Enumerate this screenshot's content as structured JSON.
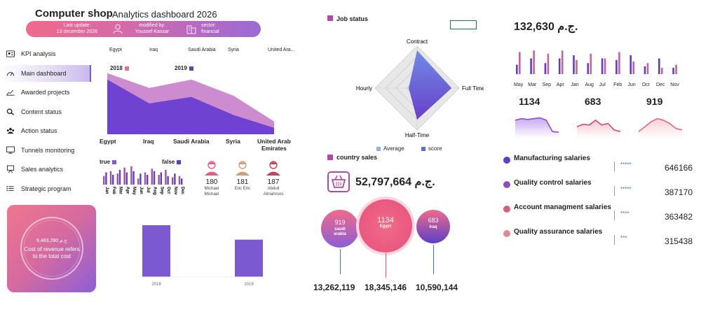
{
  "header": {
    "title": "Computer shop",
    "subtitle": "Analytics dashboard 2026",
    "last_update_label": "Last update:",
    "last_update_value": "13 december 2026",
    "modified_label": "modified by:",
    "modified_value": "Youssef Kassar",
    "sector_label": "sector:",
    "sector_value": "financial",
    "colors": {
      "pink": "#f06a8a",
      "purple": "#9b6ad6"
    }
  },
  "sidebar": {
    "items": [
      {
        "label": "KPI analysis",
        "icon": "id-card-icon"
      },
      {
        "label": "Main dashboard",
        "icon": "gauge-icon"
      },
      {
        "label": "Awarded projects",
        "icon": "line-chart-icon"
      },
      {
        "label": "Content status",
        "icon": "magnifier-icon"
      },
      {
        "label": "Action status",
        "icon": "people-icon"
      },
      {
        "label": "Tunnels monitoring",
        "icon": "monitor-icon"
      },
      {
        "label": "Sales analytics",
        "icon": "presentation-icon"
      },
      {
        "label": "Strategic program",
        "icon": "list-icon"
      }
    ],
    "active_index": 1
  },
  "area_chart": {
    "top_labels": [
      "Egypt",
      "Iraq",
      "Saudi Arabia",
      "Syria",
      "United Ara..."
    ],
    "legend": [
      {
        "label": "2018",
        "color": "#f06a8a"
      },
      {
        "label": "2019",
        "color": "#5b3fc8"
      }
    ],
    "bottom_labels": [
      "Egypt",
      "Iraq",
      "Saudi Arabia",
      "Syria",
      "United Arab\nEmirates"
    ]
  },
  "chart_data": [
    {
      "type": "area",
      "categories": [
        "Egypt",
        "Iraq",
        "Saudi Arabia",
        "Syria",
        "United Arab Emirates"
      ],
      "series": [
        {
          "name": "2018",
          "values": [
            95,
            72,
            85,
            60,
            20
          ]
        },
        {
          "name": "2019",
          "values": [
            85,
            48,
            58,
            30,
            10
          ]
        }
      ],
      "ylim": [
        0,
        100
      ]
    },
    {
      "type": "bar",
      "categories": [
        "Jan",
        "Feb",
        "Mar",
        "Apr",
        "May",
        "Jun",
        "Jul",
        "Aug",
        "Sep",
        "Oct",
        "Nov",
        "Dec"
      ],
      "series": [
        {
          "name": "true",
          "values": [
            14,
            22,
            18,
            28,
            30,
            10,
            20,
            26,
            16,
            24,
            12,
            14
          ]
        },
        {
          "name": "false",
          "values": [
            20,
            16,
            24,
            20,
            22,
            18,
            16,
            22,
            20,
            14,
            18,
            10
          ]
        }
      ],
      "ylim": [
        0,
        32
      ]
    },
    {
      "type": "bar",
      "categories": [
        "2018",
        "2019"
      ],
      "values": [
        86,
        62
      ],
      "ylim": [
        0,
        100
      ]
    },
    {
      "type": "radar",
      "categories": [
        "Contract",
        "Full Time",
        "Half-Time",
        "Hourly"
      ],
      "series": [
        {
          "name": "Average",
          "values": [
            100,
            100,
            100,
            100
          ]
        },
        {
          "name": "score",
          "values": [
            90,
            82,
            75,
            20
          ]
        }
      ],
      "ylim": [
        0,
        100
      ]
    },
    {
      "type": "bar",
      "categories": [
        "May",
        "Mar",
        "Sep",
        "Apr",
        "Jan",
        "Aug",
        "Jul",
        "Feb",
        "Jun",
        "Oct",
        "Dec",
        "Nov"
      ],
      "series": [
        {
          "name": "s1",
          "values": [
            12,
            20,
            14,
            20,
            24,
            14,
            20,
            18,
            24,
            10,
            20,
            8
          ]
        },
        {
          "name": "s2",
          "values": [
            28,
            30,
            26,
            30,
            18,
            26,
            20,
            28,
            16,
            14,
            8,
            12
          ]
        }
      ],
      "ylim": [
        0,
        32
      ]
    },
    {
      "type": "area",
      "categories": [
        "1",
        "2",
        "3",
        "4",
        "5",
        "6",
        "7",
        "8"
      ],
      "series": [
        {
          "name": "1134",
          "values": [
            20,
            22,
            21,
            22,
            23,
            20,
            6,
            5
          ]
        },
        {
          "name": "683",
          "values": [
            12,
            15,
            14,
            20,
            14,
            16,
            8,
            6
          ]
        },
        {
          "name": "919",
          "values": [
            6,
            12,
            18,
            22,
            20,
            16,
            10,
            8
          ]
        }
      ],
      "ylim": [
        0,
        26
      ]
    }
  ],
  "tf_chart": {
    "legend": [
      {
        "label": "true",
        "color": "#7b5bd6"
      },
      {
        "label": "false",
        "color": "#5b3fc8"
      }
    ],
    "months": [
      "Jan",
      "Feb",
      "Mar",
      "Apr",
      "May",
      "Jun",
      "Jul",
      "Aug",
      "Sep",
      "Oct",
      "Nov",
      "Dec"
    ]
  },
  "employees": [
    {
      "value": "180",
      "name": "Michael\nMichael"
    },
    {
      "value": "181",
      "name": "Eric Eric"
    },
    {
      "value": "187",
      "name": "Abdull\nAlmahroos"
    }
  ],
  "cost_card": {
    "value": "9,483,280 ج.م",
    "text": "Cost of revenue refers\nto the total cost"
  },
  "year_bars": {
    "labels": [
      "2018",
      "2019"
    ]
  },
  "job_status": {
    "title": "Job status",
    "axes": [
      "Contract",
      "Full Time",
      "Half-Time",
      "Hourly"
    ],
    "legend": [
      {
        "label": "Average",
        "color": "#8fb3e6"
      },
      {
        "label": "score",
        "color": "#5b6fd6"
      }
    ]
  },
  "country_sales": {
    "title": "country sales",
    "total": "52,797,664 ج.م.",
    "bubbles": [
      {
        "value": "919",
        "label": "saudi\narabia",
        "total": "13,262,119"
      },
      {
        "value": "1134",
        "label": "Egypt",
        "total": "18,345,146"
      },
      {
        "value": "683",
        "label": "Iraq",
        "total": "10,590,144"
      }
    ]
  },
  "right_panel": {
    "total": "132,630 ج.م.",
    "months": [
      "May",
      "Mar",
      "Sep",
      "Apr",
      "Jan",
      "Aug",
      "Jul",
      "Feb",
      "Jun",
      "Oct",
      "Dec",
      "Nov"
    ],
    "kpis": [
      "1134",
      "683",
      "919"
    ],
    "salaries": [
      {
        "label": "Manufacturing salaries",
        "stars": "*****",
        "value": "646166",
        "color": "#5b3fc8"
      },
      {
        "label": "Quality control salaries",
        "stars": "*****",
        "value": "387170",
        "color": "#8a4fb8"
      },
      {
        "label": "Account managment salaries",
        "stars": "****",
        "value": "363482",
        "color": "#d9607a"
      },
      {
        "label": "Quality assurance salaries",
        "stars": "***",
        "value": "315438",
        "color": "#e08a96"
      }
    ]
  }
}
